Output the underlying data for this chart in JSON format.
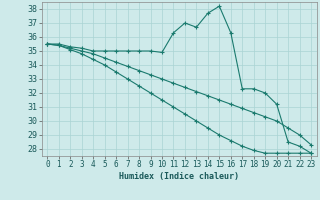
{
  "xlabel": "Humidex (Indice chaleur)",
  "background_color": "#ceeaea",
  "grid_color": "#aad4d4",
  "line_color": "#1a7a6e",
  "xlim": [
    -0.5,
    23.5
  ],
  "ylim": [
    27.5,
    38.5
  ],
  "yticks": [
    28,
    29,
    30,
    31,
    32,
    33,
    34,
    35,
    36,
    37,
    38
  ],
  "xticks": [
    0,
    1,
    2,
    3,
    4,
    5,
    6,
    7,
    8,
    9,
    10,
    11,
    12,
    13,
    14,
    15,
    16,
    17,
    18,
    19,
    20,
    21,
    22,
    23
  ],
  "series": [
    [
      35.5,
      35.5,
      35.3,
      35.2,
      35.0,
      35.0,
      35.0,
      35.0,
      35.0,
      35.0,
      34.9,
      36.3,
      37.0,
      36.7,
      37.7,
      38.2,
      36.3,
      32.3,
      32.3,
      32.0,
      31.2,
      28.5,
      28.2,
      27.7
    ],
    [
      35.5,
      35.4,
      35.2,
      35.0,
      34.8,
      34.5,
      34.2,
      33.9,
      33.6,
      33.3,
      33.0,
      32.7,
      32.4,
      32.1,
      31.8,
      31.5,
      31.2,
      30.9,
      30.6,
      30.3,
      30.0,
      29.5,
      29.0,
      28.3
    ],
    [
      35.5,
      35.4,
      35.1,
      34.8,
      34.4,
      34.0,
      33.5,
      33.0,
      32.5,
      32.0,
      31.5,
      31.0,
      30.5,
      30.0,
      29.5,
      29.0,
      28.6,
      28.2,
      27.9,
      27.7,
      27.7,
      27.7,
      27.7,
      27.7
    ]
  ]
}
